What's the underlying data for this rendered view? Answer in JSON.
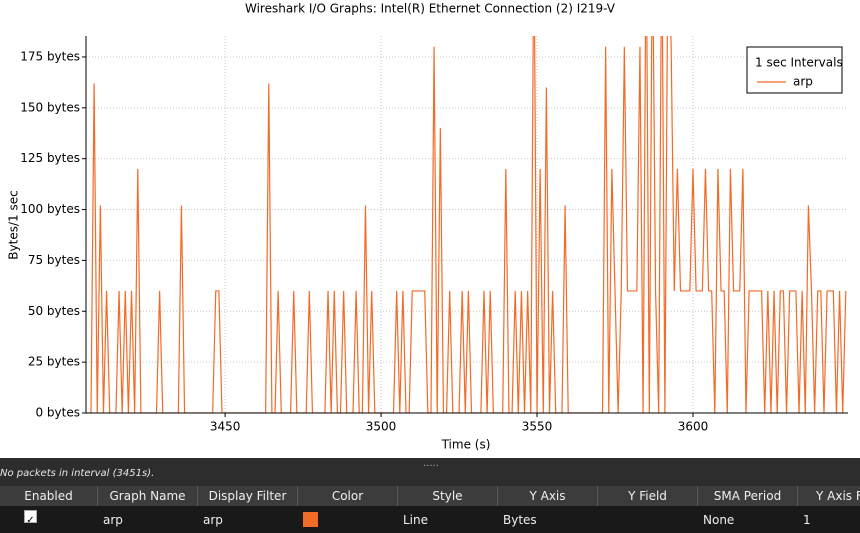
{
  "chart_data": {
    "type": "line",
    "title": "Wireshark I/O Graphs: Intel(R) Ethernet Connection (2) I219-V",
    "x_label": "Time (s)",
    "y_label": "Bytes/1 sec",
    "xlim": [
      3405.4,
      3649.7
    ],
    "xticks": [
      3450,
      3500,
      3550,
      3600
    ],
    "ylim": [
      0,
      185.3
    ],
    "yticks": [
      {
        "value": 0,
        "label": "0 bytes"
      },
      {
        "value": 25,
        "label": "25 bytes"
      },
      {
        "value": 50,
        "label": "50 bytes"
      },
      {
        "value": 75,
        "label": "75 bytes"
      },
      {
        "value": 100,
        "label": "100 bytes"
      },
      {
        "value": 125,
        "label": "125 bytes"
      },
      {
        "value": 150,
        "label": "150 bytes"
      },
      {
        "value": 175,
        "label": "175 bytes"
      }
    ],
    "grid": true,
    "legend_title": "1 sec Intervals",
    "legend_position": "upper right",
    "series": [
      {
        "name": "arp",
        "color": "#f26b27",
        "x": [
          3406,
          3407,
          3408,
          3409,
          3410,
          3411,
          3412,
          3413,
          3414,
          3415,
          3416,
          3417,
          3418,
          3419,
          3420,
          3421,
          3422,
          3423,
          3424,
          3425,
          3426,
          3427,
          3428,
          3429,
          3430,
          3431,
          3432,
          3433,
          3434,
          3435,
          3436,
          3437,
          3438,
          3439,
          3440,
          3441,
          3442,
          3443,
          3444,
          3445,
          3446,
          3447,
          3448,
          3449,
          3450,
          3451,
          3452,
          3453,
          3454,
          3455,
          3456,
          3457,
          3458,
          3459,
          3460,
          3461,
          3462,
          3463,
          3464,
          3465,
          3466,
          3467,
          3468,
          3469,
          3470,
          3471,
          3472,
          3473,
          3474,
          3475,
          3476,
          3477,
          3478,
          3479,
          3480,
          3481,
          3482,
          3483,
          3484,
          3485,
          3486,
          3487,
          3488,
          3489,
          3490,
          3491,
          3492,
          3493,
          3494,
          3495,
          3496,
          3497,
          3498,
          3499,
          3500,
          3501,
          3502,
          3503,
          3504,
          3505,
          3506,
          3507,
          3508,
          3509,
          3510,
          3511,
          3512,
          3513,
          3514,
          3515,
          3516,
          3517,
          3518,
          3519,
          3520,
          3521,
          3522,
          3523,
          3524,
          3525,
          3526,
          3527,
          3528,
          3529,
          3530,
          3531,
          3532,
          3533,
          3534,
          3535,
          3536,
          3537,
          3538,
          3539,
          3540,
          3541,
          3542,
          3543,
          3544,
          3545,
          3546,
          3547,
          3548,
          3549,
          3550,
          3551,
          3552,
          3553,
          3554,
          3555,
          3556,
          3557,
          3558,
          3559,
          3560,
          3561,
          3562,
          3563,
          3564,
          3565,
          3566,
          3567,
          3568,
          3569,
          3570,
          3571,
          3572,
          3573,
          3574,
          3575,
          3576,
          3577,
          3578,
          3579,
          3580,
          3581,
          3582,
          3583,
          3584,
          3585,
          3586,
          3587,
          3588,
          3589,
          3590,
          3591,
          3592,
          3593,
          3594,
          3595,
          3596,
          3597,
          3598,
          3599,
          3600,
          3601,
          3602,
          3603,
          3604,
          3605,
          3606,
          3607,
          3608,
          3609,
          3610,
          3611,
          3612,
          3613,
          3614,
          3615,
          3616,
          3617,
          3618,
          3619,
          3620,
          3621,
          3622,
          3623,
          3624,
          3625,
          3626,
          3627,
          3628,
          3629,
          3630,
          3631,
          3632,
          3633,
          3634,
          3635,
          3636,
          3637,
          3638,
          3639,
          3640,
          3641,
          3642,
          3643,
          3644,
          3645,
          3646,
          3647,
          3648,
          3649
        ],
        "values": [
          0,
          0,
          162,
          0,
          102,
          0,
          60,
          0,
          0,
          0,
          60,
          0,
          60,
          0,
          60,
          0,
          120,
          0,
          0,
          0,
          0,
          0,
          0,
          60,
          0,
          0,
          0,
          0,
          0,
          0,
          102,
          0,
          0,
          0,
          0,
          0,
          0,
          0,
          0,
          0,
          0,
          60,
          60,
          0,
          0,
          0,
          0,
          0,
          0,
          0,
          0,
          0,
          0,
          0,
          0,
          0,
          0,
          0,
          162,
          0,
          0,
          60,
          0,
          0,
          0,
          0,
          60,
          0,
          0,
          0,
          0,
          60,
          0,
          0,
          0,
          0,
          0,
          60,
          0,
          60,
          0,
          0,
          60,
          0,
          0,
          0,
          60,
          0,
          0,
          102,
          0,
          60,
          0,
          0,
          0,
          0,
          0,
          0,
          0,
          60,
          0,
          60,
          0,
          0,
          60,
          60,
          60,
          60,
          60,
          0,
          0,
          180,
          0,
          140,
          0,
          0,
          60,
          0,
          0,
          0,
          60,
          0,
          60,
          0,
          0,
          0,
          0,
          60,
          0,
          60,
          0,
          0,
          0,
          0,
          120,
          0,
          0,
          60,
          0,
          60,
          0,
          60,
          0,
          240,
          0,
          120,
          0,
          160,
          0,
          60,
          0,
          0,
          0,
          102,
          0,
          0,
          0,
          0,
          0,
          0,
          0,
          0,
          0,
          0,
          0,
          0,
          180,
          0,
          120,
          60,
          0,
          60,
          180,
          60,
          60,
          60,
          60,
          180,
          0,
          240,
          0,
          240,
          60,
          0,
          240,
          0,
          240,
          180,
          60,
          120,
          60,
          60,
          60,
          60,
          120,
          60,
          60,
          60,
          120,
          60,
          60,
          0,
          120,
          60,
          60,
          0,
          120,
          60,
          60,
          60,
          120,
          0,
          60,
          60,
          60,
          60,
          60,
          0,
          60,
          0,
          60,
          0,
          60,
          60,
          0,
          60,
          60,
          60,
          0,
          60,
          0,
          102,
          60,
          0,
          60,
          60,
          0,
          60,
          60,
          60,
          0,
          60,
          0,
          60
        ]
      }
    ]
  },
  "status_bar": "No packets in interval (3451s).",
  "table": {
    "columns": [
      "Enabled",
      "Graph Name",
      "Display Filter",
      "Color",
      "Style",
      "Y Axis",
      "Y Field",
      "SMA Period",
      "Y Axis Fa"
    ],
    "rows": [
      {
        "graph_name": "arp",
        "display_filter": "arp",
        "style": "Line",
        "y_axis": "Bytes",
        "sma_period": "None",
        "y_axis_factor": "1"
      }
    ]
  }
}
